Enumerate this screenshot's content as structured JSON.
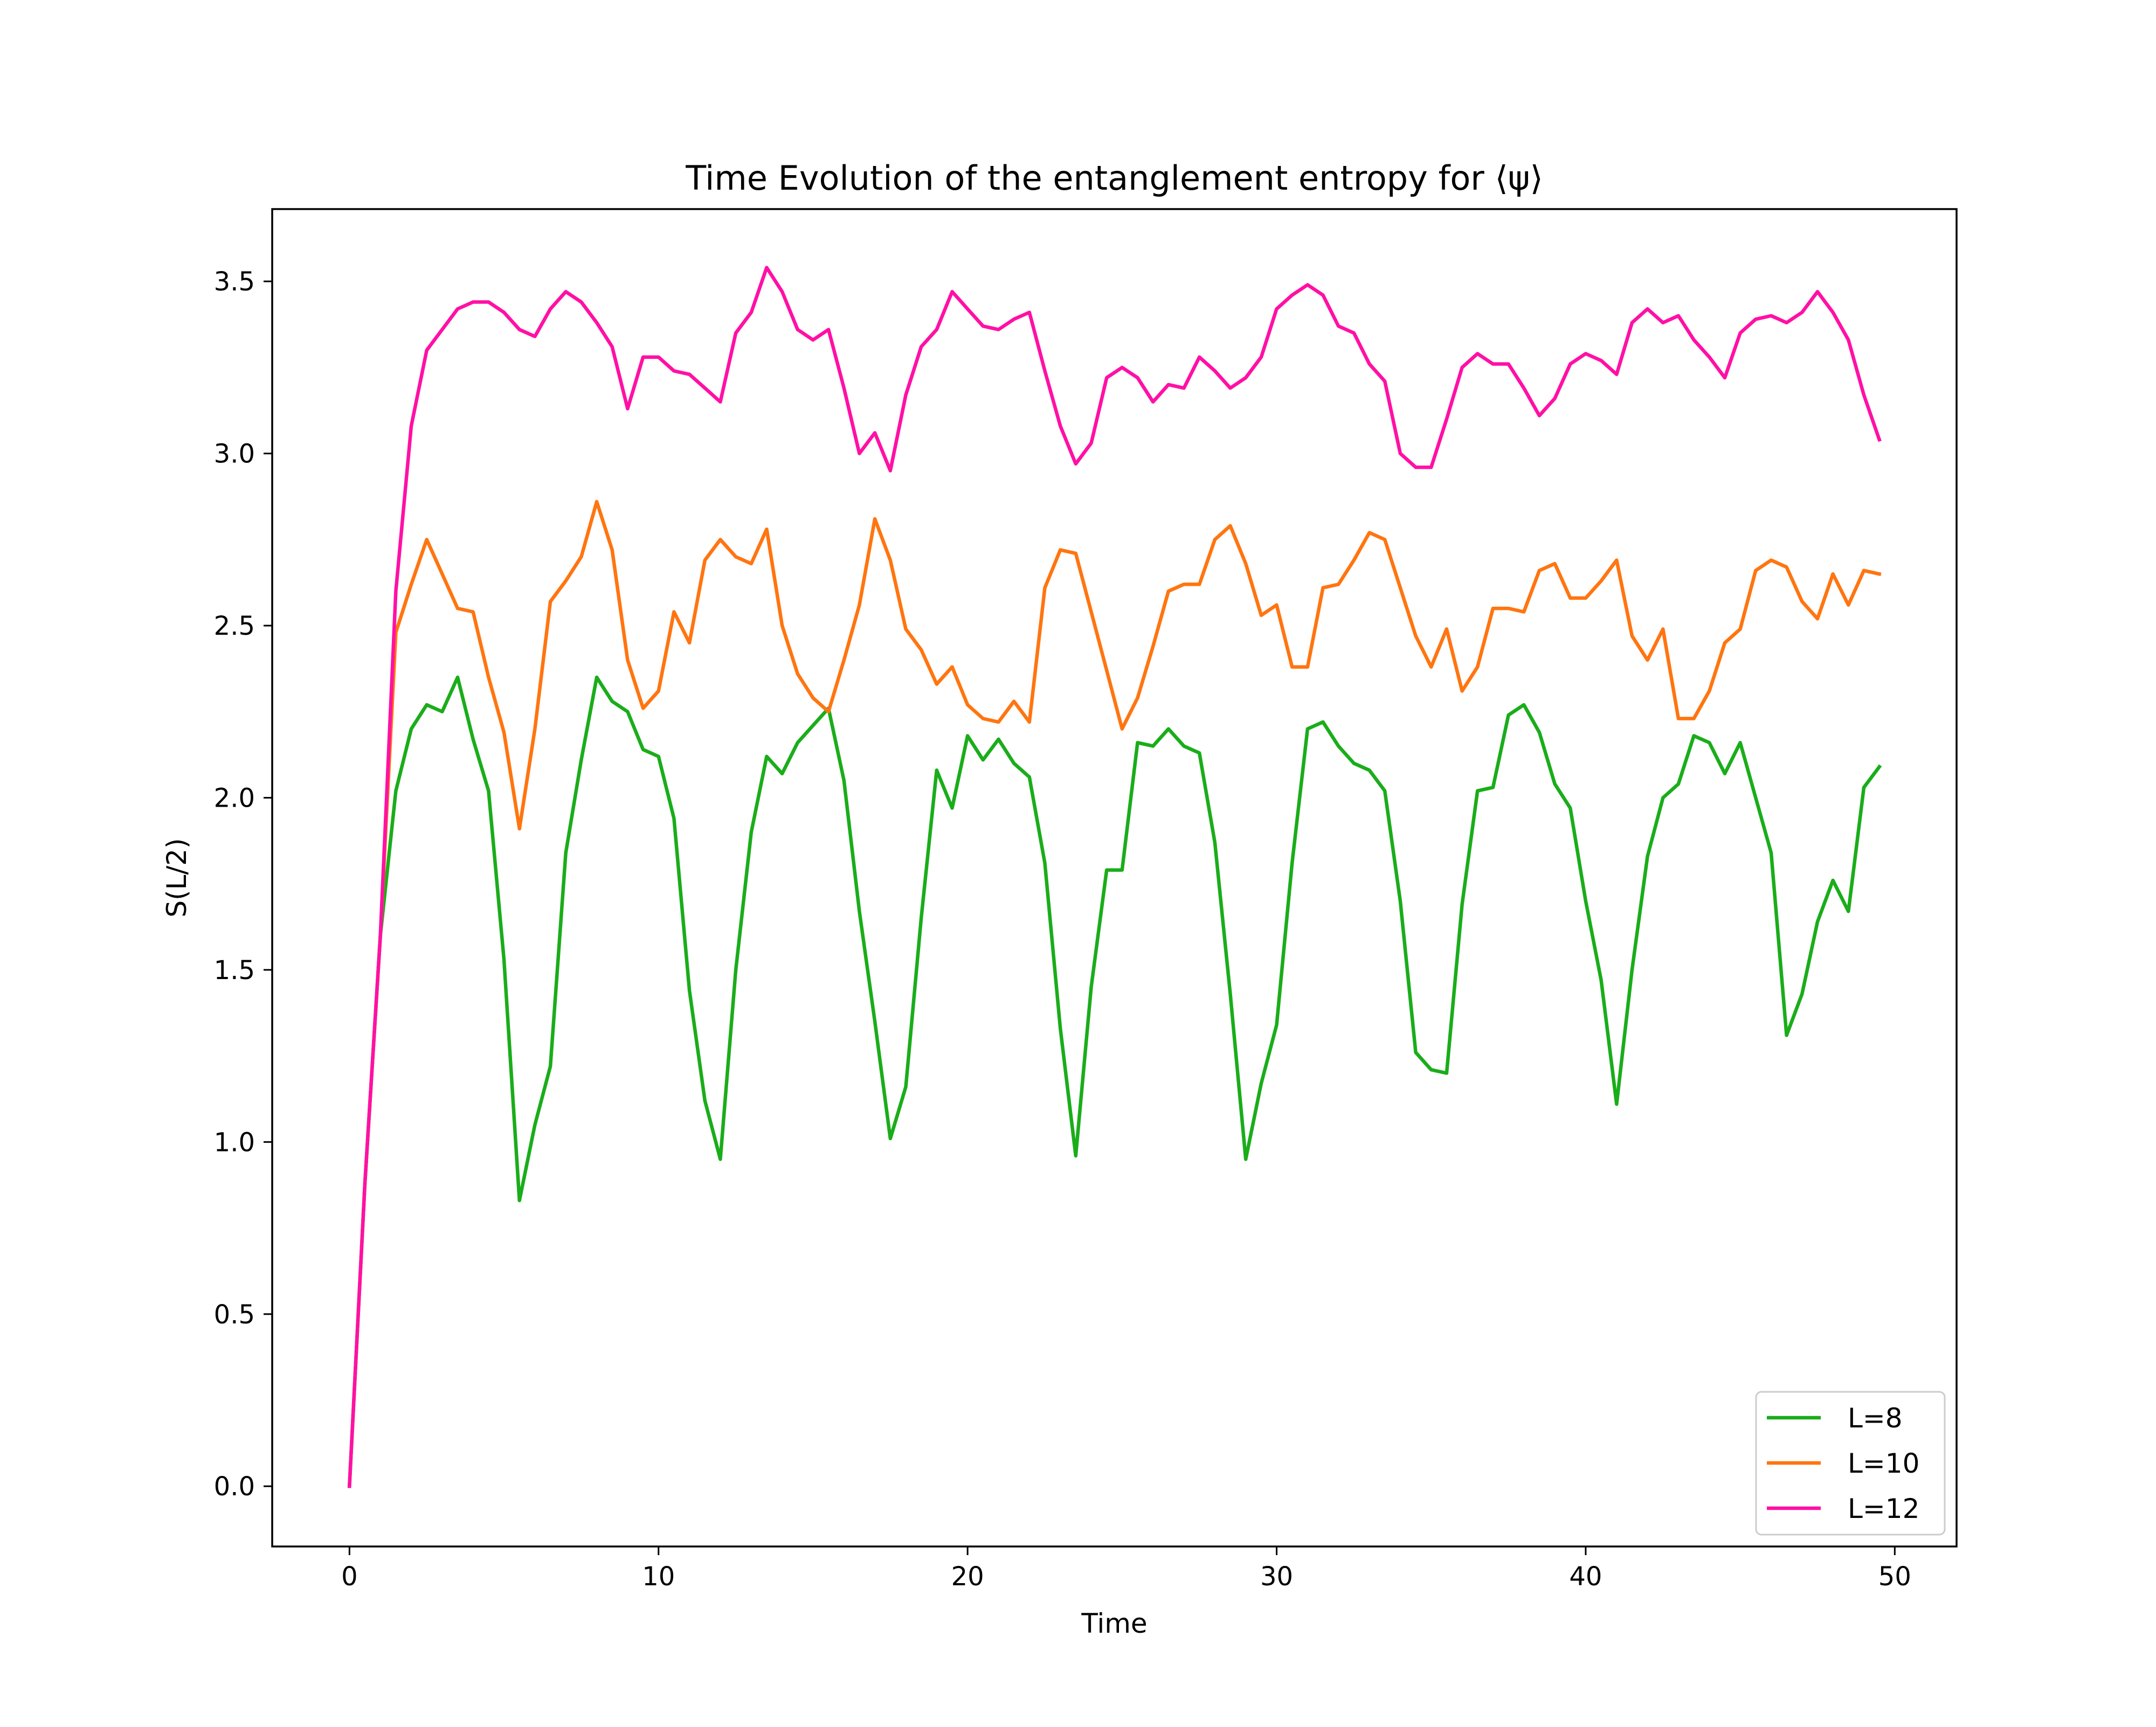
{
  "chart_data": {
    "type": "line",
    "title": "Time Evolution of the entanglement entropy for ⟨ψ⟩",
    "xlabel": "Time",
    "ylabel": "S(L/2)",
    "xlim": [
      -2.5,
      52
    ],
    "ylim": [
      -0.175,
      3.71
    ],
    "xticks": [
      0,
      10,
      20,
      30,
      40,
      50
    ],
    "yticks": [
      0.0,
      0.5,
      1.0,
      1.5,
      2.0,
      2.5,
      3.0,
      3.5
    ],
    "ytick_labels": [
      "0.0",
      "0.5",
      "1.0",
      "1.5",
      "2.0",
      "2.5",
      "3.0",
      "3.5"
    ],
    "grid": false,
    "legend_position": "lower-right",
    "x": [
      0,
      0.5,
      1,
      1.5,
      2,
      2.5,
      3,
      3.5,
      4,
      4.5,
      5,
      5.5,
      6,
      6.5,
      7,
      7.5,
      8,
      8.5,
      9,
      9.5,
      10,
      10.5,
      11,
      11.5,
      12,
      12.5,
      13,
      13.5,
      14,
      14.5,
      15,
      15.5,
      16,
      16.5,
      17,
      17.5,
      18,
      18.5,
      19,
      19.5,
      20,
      20.5,
      21,
      21.5,
      22,
      22.5,
      23,
      23.5,
      24,
      24.5,
      25,
      25.5,
      26,
      26.5,
      27,
      27.5,
      28,
      28.5,
      29,
      29.5,
      30,
      30.5,
      31,
      31.5,
      32,
      32.5,
      33,
      33.5,
      34,
      34.5,
      35,
      35.5,
      36,
      36.5,
      37,
      37.5,
      38,
      38.5,
      39,
      39.5,
      40,
      40.5,
      41,
      41.5,
      42,
      42.5,
      43,
      43.5,
      44,
      44.5,
      45,
      45.5,
      46,
      46.5,
      47,
      47.5,
      48,
      48.5,
      49,
      49.5
    ],
    "series": [
      {
        "name": "L=8",
        "color": "#1aad1a",
        "values": [
          0.0,
          0.88,
          1.6,
          2.02,
          2.2,
          2.27,
          2.25,
          2.35,
          2.17,
          2.02,
          1.53,
          0.83,
          1.05,
          1.22,
          1.84,
          2.11,
          2.35,
          2.28,
          2.25,
          2.14,
          2.12,
          1.94,
          1.44,
          1.12,
          0.95,
          1.5,
          1.9,
          2.12,
          2.07,
          2.16,
          2.21,
          2.26,
          2.05,
          1.67,
          1.35,
          1.01,
          1.16,
          1.65,
          2.08,
          1.97,
          2.18,
          2.11,
          2.17,
          2.1,
          2.06,
          1.81,
          1.33,
          0.96,
          1.45,
          1.79,
          1.79,
          2.16,
          2.15,
          2.2,
          2.15,
          2.13,
          1.87,
          1.43,
          0.95,
          1.17,
          1.34,
          1.81,
          2.2,
          2.22,
          2.15,
          2.1,
          2.08,
          2.02,
          1.7,
          1.26,
          1.21,
          1.2,
          1.69,
          2.02,
          2.03,
          2.24,
          2.27,
          2.19,
          2.04,
          1.97,
          1.7,
          1.47,
          1.11,
          1.5,
          1.83,
          2.0,
          2.04,
          2.18,
          2.16,
          2.07,
          2.16,
          2.0,
          1.84,
          1.31,
          1.43,
          1.64,
          1.76,
          1.67,
          2.03,
          2.09
        ]
      },
      {
        "name": "L=10",
        "color": "#ff7510",
        "values": [
          0.0,
          0.88,
          1.6,
          2.48,
          2.62,
          2.75,
          2.65,
          2.55,
          2.54,
          2.35,
          2.19,
          1.91,
          2.2,
          2.57,
          2.63,
          2.7,
          2.86,
          2.72,
          2.4,
          2.26,
          2.31,
          2.54,
          2.45,
          2.69,
          2.75,
          2.7,
          2.68,
          2.78,
          2.5,
          2.36,
          2.29,
          2.25,
          2.4,
          2.56,
          2.81,
          2.69,
          2.49,
          2.43,
          2.33,
          2.38,
          2.27,
          2.23,
          2.22,
          2.28,
          2.22,
          2.61,
          2.72,
          2.71,
          2.54,
          2.37,
          2.2,
          2.29,
          2.44,
          2.6,
          2.62,
          2.62,
          2.75,
          2.79,
          2.68,
          2.53,
          2.56,
          2.38,
          2.38,
          2.61,
          2.62,
          2.69,
          2.77,
          2.75,
          2.61,
          2.47,
          2.38,
          2.49,
          2.31,
          2.38,
          2.55,
          2.55,
          2.54,
          2.66,
          2.68,
          2.58,
          2.58,
          2.63,
          2.69,
          2.47,
          2.4,
          2.49,
          2.23,
          2.23,
          2.31,
          2.45,
          2.49,
          2.66,
          2.69,
          2.67,
          2.57,
          2.52,
          2.65,
          2.56,
          2.66,
          2.65
        ]
      },
      {
        "name": "L=12",
        "color": "#ff10a5",
        "values": [
          0.0,
          0.88,
          1.6,
          2.6,
          3.08,
          3.3,
          3.36,
          3.42,
          3.44,
          3.44,
          3.41,
          3.36,
          3.34,
          3.42,
          3.47,
          3.44,
          3.38,
          3.31,
          3.13,
          3.28,
          3.28,
          3.24,
          3.23,
          3.19,
          3.15,
          3.35,
          3.41,
          3.54,
          3.47,
          3.36,
          3.33,
          3.36,
          3.19,
          3.0,
          3.06,
          2.95,
          3.17,
          3.31,
          3.36,
          3.47,
          3.42,
          3.37,
          3.36,
          3.39,
          3.41,
          3.24,
          3.08,
          2.97,
          3.03,
          3.22,
          3.25,
          3.22,
          3.15,
          3.2,
          3.19,
          3.28,
          3.24,
          3.19,
          3.22,
          3.28,
          3.42,
          3.46,
          3.49,
          3.46,
          3.37,
          3.35,
          3.26,
          3.21,
          3.0,
          2.96,
          2.96,
          3.1,
          3.25,
          3.29,
          3.26,
          3.26,
          3.19,
          3.11,
          3.16,
          3.26,
          3.29,
          3.27,
          3.23,
          3.38,
          3.42,
          3.38,
          3.4,
          3.33,
          3.28,
          3.22,
          3.35,
          3.39,
          3.4,
          3.38,
          3.41,
          3.47,
          3.41,
          3.33,
          3.17,
          3.04
        ]
      }
    ]
  }
}
